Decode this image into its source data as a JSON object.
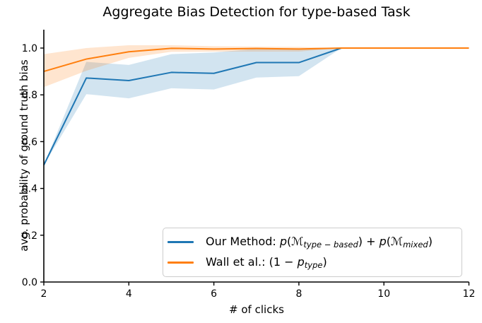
{
  "figure_bg": "#ffffff",
  "chart_data": {
    "type": "line",
    "title": "Aggregate Bias Detection for type-based Task",
    "xlabel": "# of clicks",
    "ylabel": "avg. probability of ground truth bias",
    "xlim": [
      2,
      12
    ],
    "ylim": [
      0.0,
      1.08
    ],
    "xticks": [
      "2",
      "4",
      "6",
      "8",
      "10",
      "12"
    ],
    "xtick_values": [
      2,
      4,
      6,
      8,
      10,
      12
    ],
    "yticks": [
      "0.0",
      "0.2",
      "0.4",
      "0.6",
      "0.8",
      "1.0"
    ],
    "ytick_values": [
      0.0,
      0.2,
      0.4,
      0.6,
      0.8,
      1.0
    ],
    "grid": false,
    "legend_position": "lower right inside",
    "x": [
      2,
      3,
      4,
      5,
      6,
      7,
      8,
      9,
      10,
      11,
      12
    ],
    "series": [
      {
        "name": "Our Method: p(ℳ_type−based) + p(ℳ_mixed)",
        "color": "#1f77b4",
        "band_alpha": 0.2,
        "values": [
          0.5,
          0.872,
          0.861,
          0.896,
          0.892,
          0.938,
          0.938,
          1.0,
          1.0,
          1.0,
          1.0
        ],
        "band_lower": [
          0.5,
          0.803,
          0.785,
          0.828,
          0.823,
          0.874,
          0.88,
          1.0,
          1.0,
          1.0,
          1.0
        ],
        "band_upper": [
          0.5,
          0.941,
          0.928,
          0.974,
          0.981,
          0.997,
          0.998,
          1.0,
          1.0,
          1.0,
          1.0
        ]
      },
      {
        "name": "Wall et al.: (1 − p_type)",
        "color": "#ff7f0e",
        "band_alpha": 0.2,
        "values": [
          0.9,
          0.953,
          0.984,
          0.999,
          0.996,
          0.998,
          0.996,
          1.0,
          1.0,
          1.0,
          1.0
        ],
        "band_lower": [
          0.833,
          0.903,
          0.958,
          0.984,
          0.985,
          0.985,
          0.985,
          1.0,
          1.0,
          1.0,
          1.0
        ],
        "band_upper": [
          0.974,
          1.0,
          1.012,
          1.012,
          1.008,
          1.006,
          1.005,
          1.0,
          1.0,
          1.0,
          1.0
        ]
      }
    ]
  },
  "legend": {
    "items": [
      {
        "color": "#1f77b4",
        "text": "Our Method: p(ℳ_type−based) + p(ℳ_mixed)",
        "parts": [
          {
            "t": "Our Method: "
          },
          {
            "t": "p",
            "s": "i"
          },
          {
            "t": "("
          },
          {
            "t": "ℳ"
          },
          {
            "t": "type − based",
            "s": "sub"
          },
          {
            "t": ") + "
          },
          {
            "t": "p",
            "s": "i"
          },
          {
            "t": "("
          },
          {
            "t": "ℳ"
          },
          {
            "t": "mixed",
            "s": "sub"
          },
          {
            "t": ")"
          }
        ]
      },
      {
        "color": "#ff7f0e",
        "text": "Wall et al.: (1 − p_type)",
        "parts": [
          {
            "t": "Wall et al.: (1 − "
          },
          {
            "t": "p",
            "s": "i"
          },
          {
            "t": "type",
            "s": "sub"
          },
          {
            "t": ")"
          }
        ]
      }
    ]
  }
}
